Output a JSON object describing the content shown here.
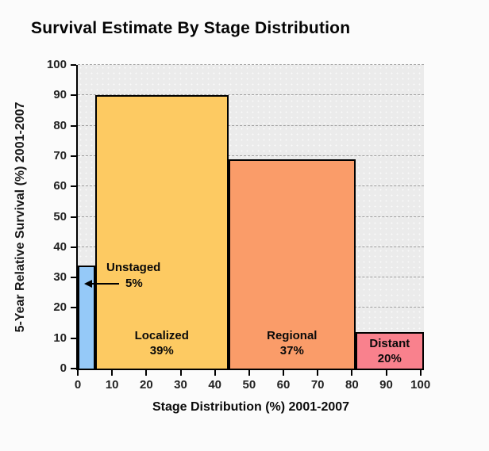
{
  "page": {
    "background": "#FBFBFB"
  },
  "chart_data": {
    "type": "bar",
    "subtype": "variable-width-bars",
    "title": "Survival Estimate By Stage Distribution",
    "xlabel": "Stage Distribution (%) 2001-2007",
    "ylabel": "5-Year Relative Survival (%) 2001-2007",
    "xlim": [
      0,
      101
    ],
    "ylim": [
      0,
      100
    ],
    "x_ticks": [
      0,
      10,
      20,
      30,
      40,
      50,
      60,
      70,
      80,
      90,
      100
    ],
    "y_ticks": [
      0,
      10,
      20,
      30,
      40,
      50,
      60,
      70,
      80,
      90,
      100
    ],
    "grid": "horizontal dashed gridlines every 10, gray dotted plot background",
    "plot_bg": "#EBEBEB",
    "bars": [
      {
        "stage": "Unstaged",
        "stage_distribution_pct": 5,
        "pct_text": "5%",
        "survival_pct": 34,
        "x_start": 0,
        "x_end": 5,
        "color": "#95C9F8",
        "label_style": "external-arrow"
      },
      {
        "stage": "Localized",
        "stage_distribution_pct": 39,
        "pct_text": "39%",
        "survival_pct": 90,
        "x_start": 5,
        "x_end": 44,
        "color": "#FDCA62",
        "label_style": "inside-bottom"
      },
      {
        "stage": "Regional",
        "stage_distribution_pct": 37,
        "pct_text": "37%",
        "survival_pct": 69,
        "x_start": 44,
        "x_end": 81,
        "color": "#FA9C69",
        "label_style": "inside-bottom"
      },
      {
        "stage": "Distant",
        "stage_distribution_pct": 20,
        "pct_text": "20%",
        "survival_pct": 12,
        "x_start": 81,
        "x_end": 101,
        "color": "#F9818D",
        "label_style": "inside-bottom"
      }
    ],
    "annotation": {
      "label": "Unstaged",
      "pct_text": "5%",
      "arrow_direction": "left"
    }
  },
  "colors": {
    "axis": "#000000",
    "gridline": "#9E9E9E",
    "text": "#0A0A0A",
    "tick_text": "#222222"
  }
}
